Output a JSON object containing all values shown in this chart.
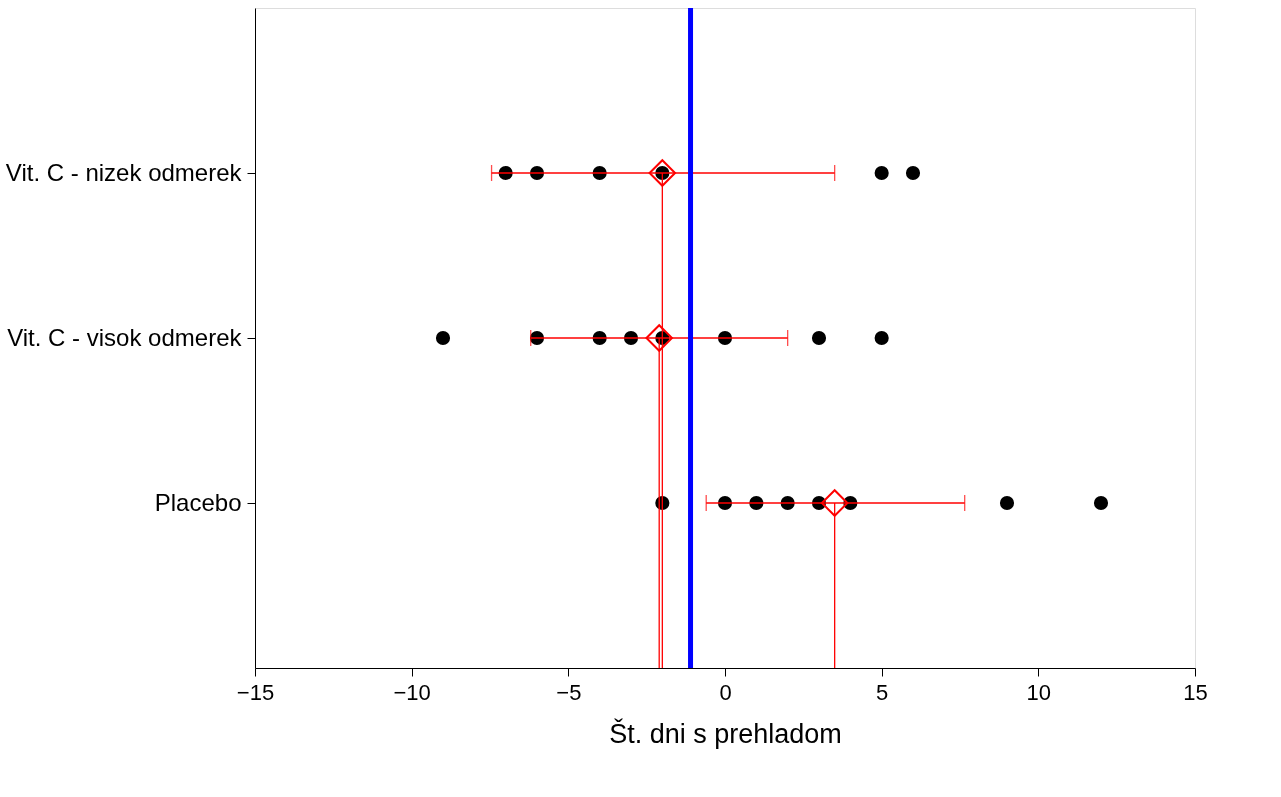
{
  "chart_data": {
    "type": "scatter",
    "orientation": "horizontal",
    "xlabel": "Št. dni s prehladom",
    "categories": [
      "Vit. C - nizek odmerek",
      "Vit. C - visok odmerek",
      "Placebo"
    ],
    "xlim": [
      -15,
      15
    ],
    "xticks": [
      -15,
      -10,
      -5,
      0,
      5,
      10,
      15
    ],
    "grid": false,
    "legend": false,
    "series": [
      {
        "type": "scatter",
        "marker": "circle",
        "color": "#000000",
        "x": [
          "Vit. C - nizek odmerek",
          "Vit. C - nizek odmerek",
          "Vit. C - nizek odmerek",
          "Vit. C - nizek odmerek",
          "Vit. C - nizek odmerek",
          "Vit. C - nizek odmerek",
          "Vit. C - visok odmerek",
          "Vit. C - visok odmerek",
          "Vit. C - visok odmerek",
          "Vit. C - visok odmerek",
          "Vit. C - visok odmerek",
          "Vit. C - visok odmerek",
          "Vit. C - visok odmerek",
          "Vit. C - visok odmerek",
          "Placebo",
          "Placebo",
          "Placebo",
          "Placebo",
          "Placebo",
          "Placebo",
          "Placebo",
          "Placebo"
        ],
        "values": [
          -7,
          -6,
          -4,
          -2,
          5,
          6,
          -9,
          -6,
          -4,
          -3,
          -2,
          0,
          3,
          5,
          -2,
          0,
          1,
          2,
          3,
          4,
          9,
          12
        ]
      },
      {
        "type": "scatter",
        "marker": "diamond",
        "color": "#ff0000",
        "x": [
          "Vit. C - nizek odmerek",
          "Vit. C - visok odmerek",
          "Placebo"
        ],
        "values": [
          -2,
          -2.1,
          3.5
        ],
        "errors": [
          [
            -7.45,
            3.5
          ],
          [
            -6.2,
            2
          ],
          [
            -0.6,
            7.65
          ]
        ]
      }
    ],
    "ref_lines": [
      {
        "axis": "x",
        "value": -1.1,
        "color": "#0000ff"
      },
      {
        "axis": "x",
        "value": -2,
        "color": "#ff0000"
      },
      {
        "axis": "x",
        "value": -2.1,
        "color": "#ff0000"
      },
      {
        "axis": "x",
        "value": 3.5,
        "color": "#ff0000"
      }
    ]
  }
}
